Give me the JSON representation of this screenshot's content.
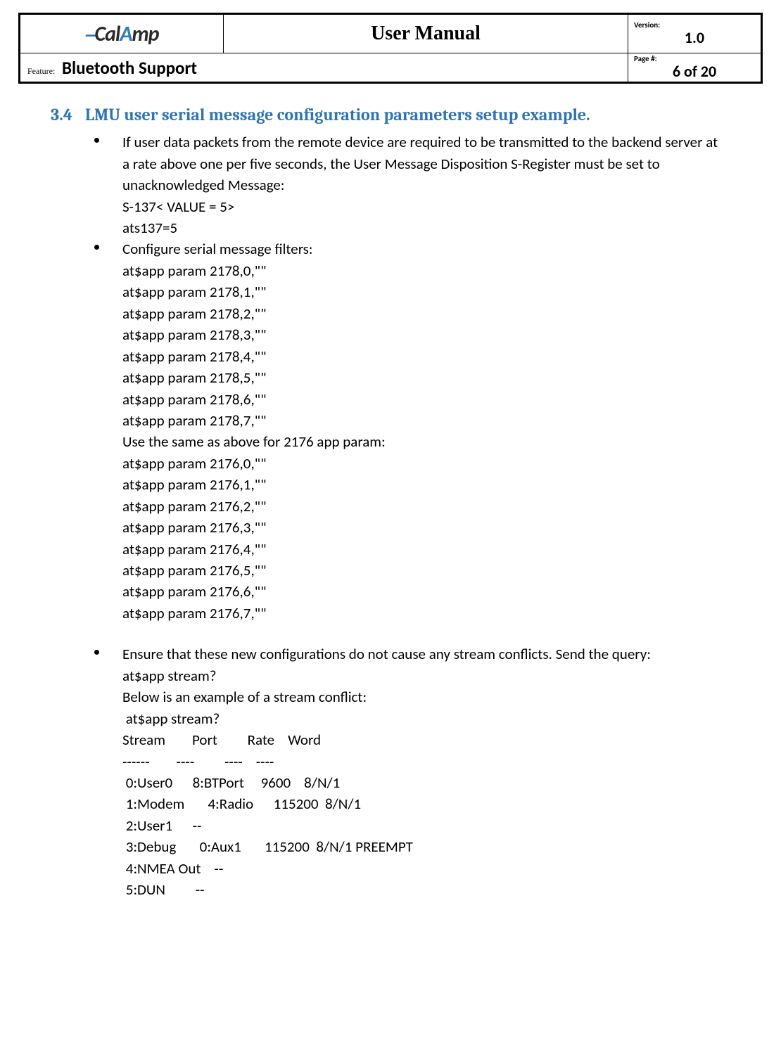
{
  "header": {
    "logo_text": "CalAmp",
    "title": "User Manual",
    "version_label": "Version:",
    "version_value": "1.0",
    "feature_label": "Feature:",
    "feature_value": "Bluetooth Support",
    "page_label": "Page #:",
    "page_value": "6 of 20"
  },
  "section": {
    "number": "3.4",
    "title": "LMU user serial message  configuration parameters setup example."
  },
  "bullet1": {
    "intro": "If user data packets from the remote device are required to be transmitted to the backend server at a rate above one per five seconds, the User Message Disposition S-Register must be set to unacknowledged Message:",
    "line1": "S-137< VALUE = 5>",
    "line2": "ats137=5"
  },
  "bullet2": {
    "intro": "Configure serial message filters:",
    "cmds_a": [
      "at$app param 2178,0,\"\"",
      "at$app param 2178,1,\"\"",
      "at$app param 2178,2,\"\"",
      "at$app param 2178,3,\"\"",
      "at$app param 2178,4,\"\"",
      "at$app param 2178,5,\"\"",
      "at$app param 2178,6,\"\"",
      "at$app param 2178,7,\"\""
    ],
    "mid": "Use the same as above for 2176 app param:",
    "cmds_b": [
      "at$app param 2176,0,\"\"",
      "at$app param 2176,1,\"\"",
      "at$app param 2176,2,\"\"",
      "at$app param 2176,3,\"\"",
      "at$app param 2176,4,\"\"",
      "at$app param 2176,5,\"\"",
      "at$app param 2176,6,\"\"",
      "at$app param 2176,7,\"\""
    ]
  },
  "bullet3": {
    "intro": "Ensure that these new configurations do not cause any stream conflicts. Send the query:",
    "query": "at$app stream?",
    "example_label": "Below is an example of a stream conflict:",
    "block": " at$app stream?\nStream        Port         Rate    Word\n------        ----         ----    ----\n 0:User0      8:BTPort     9600    8/N/1\n 1:Modem       4:Radio      115200  8/N/1\n 2:User1      --\n 3:Debug       0:Aux1       115200  8/N/1 PREEMPT\n 4:NMEA Out    --\n 5:DUN         --"
  },
  "colors": {
    "heading": "#2e74b5",
    "text": "#000000",
    "logo_accent": "#2c7bbf"
  }
}
